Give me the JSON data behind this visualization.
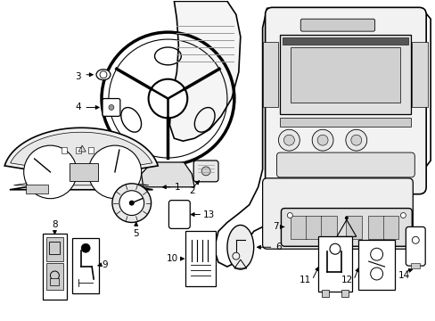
{
  "bg_color": "#ffffff",
  "lc": "#000000",
  "gc": "#999999",
  "lgc": "#cccccc",
  "fig_width": 4.89,
  "fig_height": 3.6,
  "dpi": 100
}
